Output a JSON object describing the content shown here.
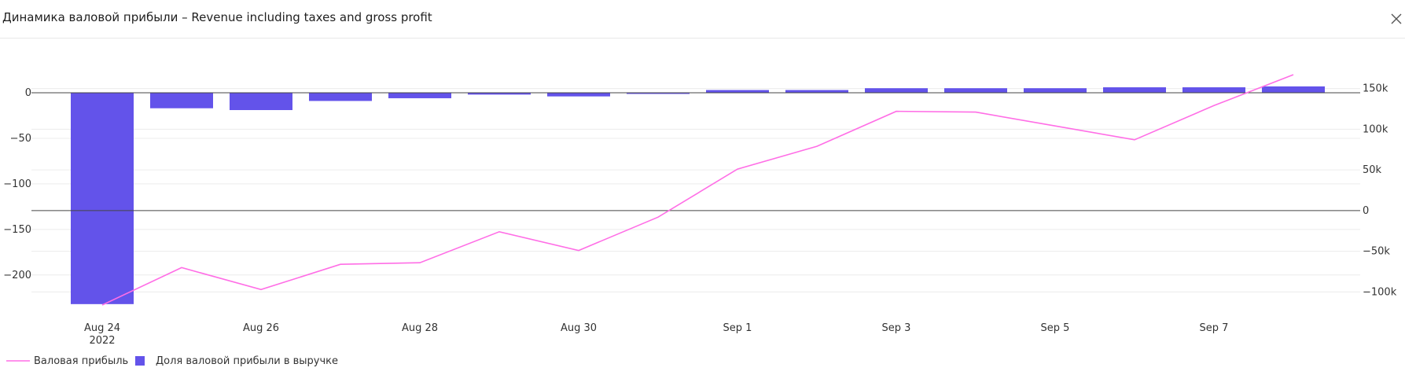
{
  "window": {
    "title": "Динамика валовой прибыли – Revenue including taxes and gross profit",
    "close_icon": "close-icon"
  },
  "colors": {
    "line": "#ff6ee6",
    "bar": "#6353ea",
    "grid": "#ececec",
    "axis": "#444444"
  },
  "chart_data": {
    "type": "bar",
    "x_ticks": [
      {
        "date": "2022-08-24",
        "label": "Aug 24",
        "sublabel": "2022"
      },
      {
        "date": "2022-08-26",
        "label": "Aug 26",
        "sublabel": ""
      },
      {
        "date": "2022-08-28",
        "label": "Aug 28",
        "sublabel": ""
      },
      {
        "date": "2022-08-30",
        "label": "Aug 30",
        "sublabel": ""
      },
      {
        "date": "2022-09-01",
        "label": "Sep 1",
        "sublabel": ""
      },
      {
        "date": "2022-09-03",
        "label": "Sep 3",
        "sublabel": ""
      },
      {
        "date": "2022-09-05",
        "label": "Sep 5",
        "sublabel": ""
      },
      {
        "date": "2022-09-07",
        "label": "Sep 7",
        "sublabel": ""
      }
    ],
    "dates": [
      "2022-08-24",
      "2022-08-25",
      "2022-08-26",
      "2022-08-27",
      "2022-08-28",
      "2022-08-29",
      "2022-08-30",
      "2022-08-31",
      "2022-09-01",
      "2022-09-02",
      "2022-09-03",
      "2022-09-04",
      "2022-09-05",
      "2022-09-06",
      "2022-09-07",
      "2022-09-08"
    ],
    "series": [
      {
        "name": "Доля валовой прибыли в выручке",
        "type": "bar",
        "axis": "left",
        "values": [
          -232,
          -17,
          -19,
          -9,
          -6,
          -2,
          -4,
          -1,
          3,
          3,
          5,
          5,
          5,
          6,
          6,
          7
        ]
      },
      {
        "name": "Валовая прибыль",
        "type": "line",
        "axis": "right",
        "values": [
          -116000,
          -70000,
          -97000,
          -66000,
          -64000,
          -26000,
          -49000,
          -8000,
          51000,
          79000,
          122000,
          121000,
          104000,
          87000,
          129000,
          167000
        ]
      }
    ],
    "y_left": {
      "min": -233,
      "max": 0,
      "ticks": [
        0,
        -50,
        -100,
        -150,
        -200
      ],
      "tick_labels": [
        "0",
        "−50",
        "−100",
        "−150",
        "−200"
      ]
    },
    "y_right": {
      "min": -116000,
      "max": 167000,
      "ticks": [
        150000,
        100000,
        50000,
        0,
        -50000,
        -100000
      ],
      "tick_labels": [
        "150k",
        "100k",
        "50k",
        "0",
        "−50k",
        "−100k"
      ]
    },
    "legend": {
      "position": "bottom-left",
      "items": [
        "Валовая прибыль",
        "Доля валовой прибыли в выручке"
      ]
    },
    "grid": true
  }
}
